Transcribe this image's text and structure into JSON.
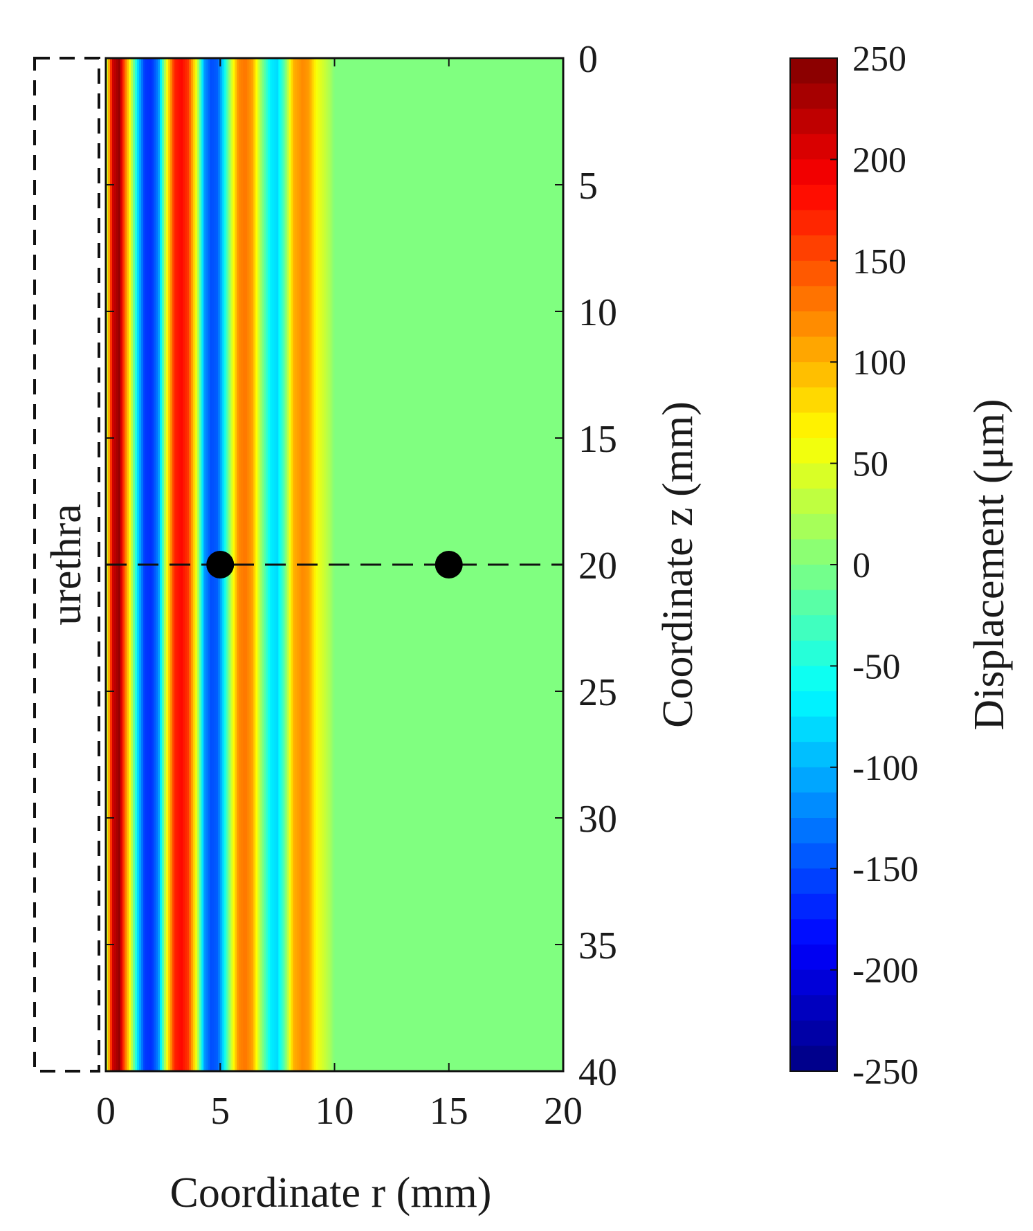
{
  "chart_data": {
    "type": "heatmap",
    "title": "",
    "xlabel": "Coordinate r (mm)",
    "ylabel": "Coordinate z (mm)",
    "xlim": [
      0,
      20
    ],
    "ylim": [
      0,
      40
    ],
    "y_inverted": true,
    "x_ticks": [
      0,
      5,
      10,
      15,
      20
    ],
    "x_tick_labels": [
      "0",
      "5",
      "10",
      "15",
      "20"
    ],
    "y_ticks": [
      0,
      5,
      10,
      15,
      20,
      25,
      30,
      35,
      40
    ],
    "y_tick_labels": [
      "0",
      "5",
      "10",
      "15",
      "20",
      "25",
      "30",
      "35",
      "40"
    ],
    "radial_profile": {
      "r": [
        0.0,
        0.3,
        0.6,
        0.8,
        1.1,
        1.4,
        1.7,
        2.0,
        2.3,
        2.6,
        3.0,
        3.3,
        3.6,
        4.0,
        4.3,
        4.6,
        4.9,
        5.2,
        5.5,
        5.8,
        6.1,
        6.4,
        6.8,
        7.2,
        7.5,
        7.8,
        8.2,
        8.6,
        8.9,
        9.2,
        9.5,
        9.8,
        10.0,
        20.0
      ],
      "displacement": [
        20,
        210,
        240,
        150,
        40,
        -80,
        -160,
        -165,
        -120,
        30,
        170,
        185,
        160,
        40,
        -110,
        -150,
        -140,
        -60,
        40,
        120,
        130,
        110,
        10,
        -70,
        -80,
        -20,
        100,
        120,
        110,
        60,
        40,
        20,
        0,
        0
      ]
    },
    "markers": [
      {
        "r": 5,
        "z": 20
      },
      {
        "r": 15,
        "z": 20
      }
    ],
    "reference_line": {
      "z": 20,
      "style": "dashed"
    },
    "region_label": "urethra",
    "colorbar": {
      "label": "Displacement (μm)",
      "range": [
        -250,
        250
      ],
      "ticks": [
        250,
        200,
        150,
        100,
        50,
        0,
        -50,
        -100,
        -150,
        -200,
        -250
      ],
      "tick_labels": [
        "250",
        "200",
        "150",
        "100",
        "50",
        "0",
        "-50",
        "-100",
        "-150",
        "-200",
        "-250"
      ],
      "colormap": "jet",
      "levels": 40
    }
  }
}
